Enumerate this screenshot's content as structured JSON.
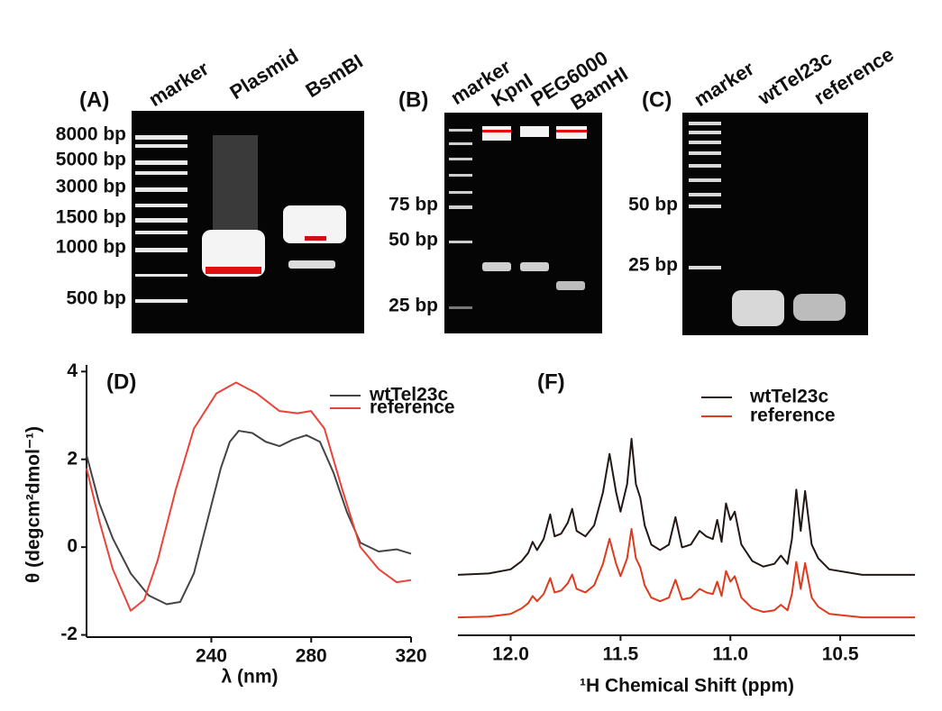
{
  "gels": [
    {
      "panel": "(A)",
      "lanes": [
        "marker",
        "Plasmid",
        "BsmBI"
      ],
      "sizes": [
        "8000 bp",
        "5000 bp",
        "3000 bp",
        "1500 bp",
        "1000 bp",
        "500 bp"
      ]
    },
    {
      "panel": "(B)",
      "lanes": [
        "marker",
        "KpnI",
        "PEG6000",
        "BamHI"
      ],
      "sizes": [
        "75 bp",
        "50 bp",
        "25 bp"
      ]
    },
    {
      "panel": "(C)",
      "lanes": [
        "marker",
        "wtTel23c",
        "reference"
      ],
      "sizes": [
        "50 bp",
        "25 bp"
      ]
    }
  ],
  "chart_data": [
    {
      "type": "line",
      "panel": "(D)",
      "xlabel": "λ (nm)",
      "ylabel": "θ (degcm²dmol⁻¹)",
      "xlim": [
        190,
        320
      ],
      "xticks": [
        240,
        280,
        320
      ],
      "ylim": [
        -2.05,
        4.15
      ],
      "yticks": [
        4,
        2,
        0,
        -2
      ],
      "series": [
        {
          "name": "wtTel23c",
          "color": "#444444",
          "x": [
            190,
            195.1,
            200.5,
            207.7,
            214.9,
            222.1,
            227.5,
            233,
            238.4,
            243.8,
            247.4,
            251,
            256.4,
            261.8,
            267.3,
            272.7,
            278.1,
            283.5,
            288.9,
            294.3,
            299.7,
            307,
            314.2,
            320
          ],
          "values": [
            2.1,
            1.0,
            0.2,
            -0.6,
            -1.1,
            -1.3,
            -1.25,
            -0.6,
            0.6,
            1.8,
            2.4,
            2.65,
            2.6,
            2.4,
            2.3,
            2.45,
            2.55,
            2.4,
            1.7,
            0.8,
            0.1,
            -0.1,
            -0.05,
            -0.15
          ]
        },
        {
          "name": "reference",
          "color": "#e8443a",
          "x": [
            190,
            195.1,
            200.5,
            207.7,
            213.1,
            218.5,
            225.7,
            233,
            242,
            249.9,
            258.2,
            267.3,
            274.5,
            279.9,
            285.3,
            292.5,
            299.7,
            307,
            314.2,
            320
          ],
          "values": [
            1.8,
            0.6,
            -0.5,
            -1.45,
            -1.2,
            -0.3,
            1.3,
            2.7,
            3.5,
            3.75,
            3.5,
            3.1,
            3.05,
            3.1,
            2.7,
            1.3,
            0.0,
            -0.5,
            -0.8,
            -0.75
          ]
        }
      ]
    },
    {
      "type": "line",
      "panel": "(F)",
      "xlabel": "¹H Chemical Shift (ppm)",
      "xlim": [
        12.24,
        10.16
      ],
      "xticks": [
        {
          "value": 12,
          "label": "12.0"
        },
        11.5,
        {
          "value": 11,
          "label": "11.0"
        },
        10.5
      ],
      "ylim": [
        0,
        100
      ],
      "x": [
        12.24,
        12.1,
        12.0,
        11.95,
        11.92,
        11.9,
        11.88,
        11.85,
        11.82,
        11.8,
        11.77,
        11.74,
        11.72,
        11.7,
        11.66,
        11.62,
        11.58,
        11.55,
        11.52,
        11.5,
        11.47,
        11.45,
        11.43,
        11.41,
        11.39,
        11.36,
        11.32,
        11.28,
        11.25,
        11.22,
        11.18,
        11.14,
        11.11,
        11.08,
        11.06,
        11.04,
        11.02,
        11.0,
        10.98,
        10.95,
        10.9,
        10.85,
        10.8,
        10.77,
        10.74,
        10.72,
        10.7,
        10.68,
        10.66,
        10.63,
        10.6,
        10.55,
        10.4,
        10.16
      ],
      "series": [
        {
          "name": "wtTel23c",
          "color": "#231816",
          "values": [
            22,
            22.5,
            24,
            27,
            30,
            34,
            31,
            35,
            44,
            36,
            37,
            41,
            46,
            38,
            36,
            40,
            52,
            66,
            52,
            45,
            55,
            71.5,
            55,
            50,
            40,
            33,
            31,
            33,
            43,
            32,
            33,
            38,
            36,
            35,
            42,
            34,
            48,
            42,
            45,
            33,
            27,
            25,
            26,
            29,
            26,
            35,
            53,
            38,
            52.5,
            33,
            28,
            24,
            22,
            22
          ]
        },
        {
          "name": "reference",
          "color": "#e03a1e",
          "values": [
            6.5,
            6.8,
            7.8,
            9.8,
            11.7,
            14.3,
            12.4,
            15,
            20.8,
            15.6,
            16.3,
            18.9,
            22.1,
            16.9,
            15.6,
            18.2,
            26,
            35.1,
            26,
            21.5,
            28,
            38.7,
            28,
            24.7,
            18.2,
            13.7,
            12.4,
            13.7,
            20.2,
            13,
            13.7,
            16.9,
            15.6,
            15,
            19.5,
            14.3,
            23.4,
            19.5,
            21.5,
            13.7,
            9.8,
            8.5,
            9.1,
            11.1,
            9.1,
            15,
            26.7,
            16.9,
            26.3,
            13.7,
            10.4,
            7.8,
            6.5,
            6.5
          ]
        }
      ]
    }
  ]
}
